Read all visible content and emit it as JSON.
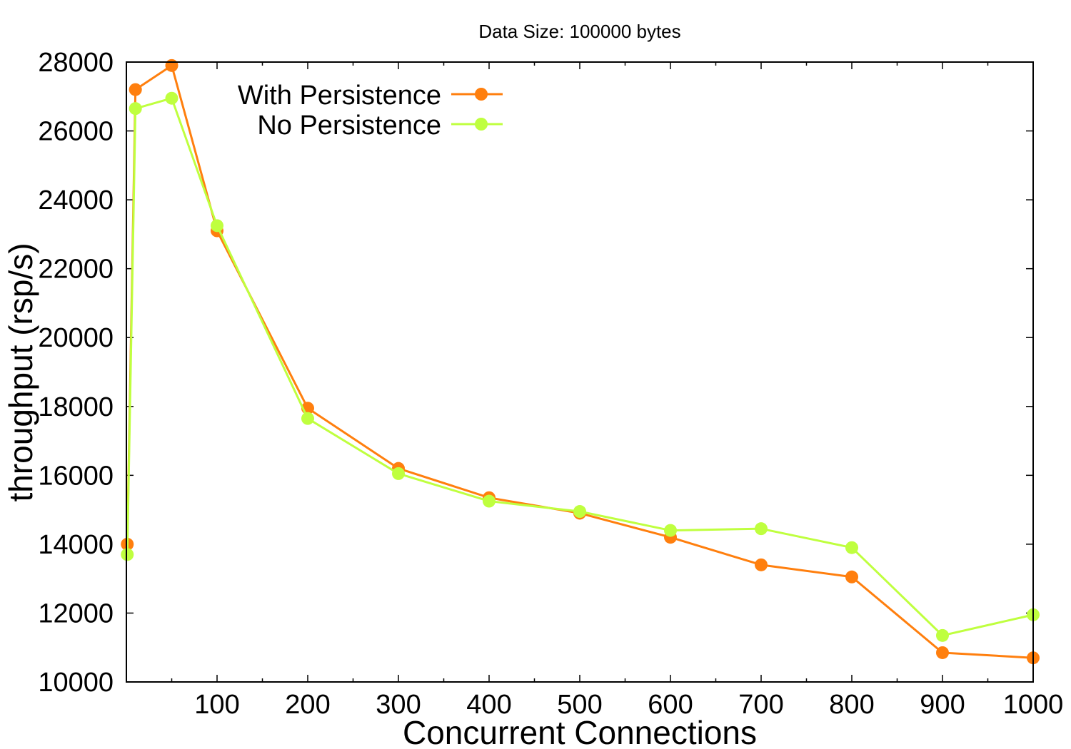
{
  "chart_data": {
    "type": "line",
    "title": "Data Size: 100000 bytes",
    "xlabel": "Concurrent Connections",
    "ylabel": "throughput (rsp/s)",
    "xlim": [
      0,
      1000
    ],
    "ylim": [
      10000,
      28000
    ],
    "xticks": [
      100,
      200,
      300,
      400,
      500,
      600,
      700,
      800,
      900,
      1000
    ],
    "yticks": [
      10000,
      12000,
      14000,
      16000,
      18000,
      20000,
      22000,
      24000,
      26000,
      28000
    ],
    "x_minor_step": 50,
    "grid": false,
    "legend_position": "top-left",
    "x": [
      1,
      10,
      50,
      100,
      200,
      300,
      400,
      500,
      600,
      700,
      800,
      900,
      1000
    ],
    "series": [
      {
        "name": "With Persistence",
        "color": "#ff7f0e",
        "values": [
          14000,
          27200,
          27900,
          23100,
          17950,
          16200,
          15350,
          14900,
          14200,
          13400,
          13050,
          10850,
          10700
        ]
      },
      {
        "name": "No Persistence",
        "color": "#bfff3f",
        "values": [
          13700,
          26650,
          26950,
          23250,
          17650,
          16050,
          15250,
          14950,
          14400,
          14450,
          13900,
          11350,
          11950
        ]
      }
    ]
  }
}
